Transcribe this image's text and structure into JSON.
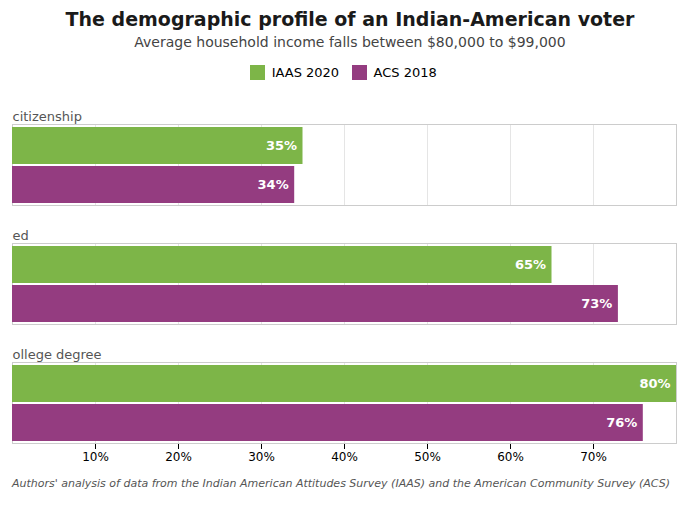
{
  "chart_data": {
    "type": "bar",
    "orientation": "horizontal",
    "title": "The demographic profile of an Indian-American voter",
    "subtitle": "Average household income falls between $80,000 to $99,000",
    "footnote": "Authors' analysis of data from the Indian American Attitudes Survey (IAAS) and the American Community Survey (ACS)",
    "categories": [
      "citizenship",
      "ed",
      "ollege degree"
    ],
    "series": [
      {
        "name": "IAAS 2020",
        "color": "#7db548",
        "values": [
          35,
          65,
          80
        ],
        "value_labels": [
          "35%",
          "65%",
          "80%"
        ]
      },
      {
        "name": "ACS 2018",
        "color": "#943c80",
        "values": [
          34,
          73,
          76
        ],
        "value_labels": [
          "34%",
          "73%",
          "76%"
        ]
      }
    ],
    "xlim": [
      0,
      80
    ],
    "xticks": [
      {
        "value": 10,
        "label": "10%"
      },
      {
        "value": 20,
        "label": "20%"
      },
      {
        "value": 30,
        "label": "30%"
      },
      {
        "value": 40,
        "label": "40%"
      },
      {
        "value": 50,
        "label": "50%"
      },
      {
        "value": 60,
        "label": "60%"
      },
      {
        "value": 70,
        "label": "70%"
      }
    ],
    "grid": true,
    "legend": "top",
    "data_labels": true
  }
}
